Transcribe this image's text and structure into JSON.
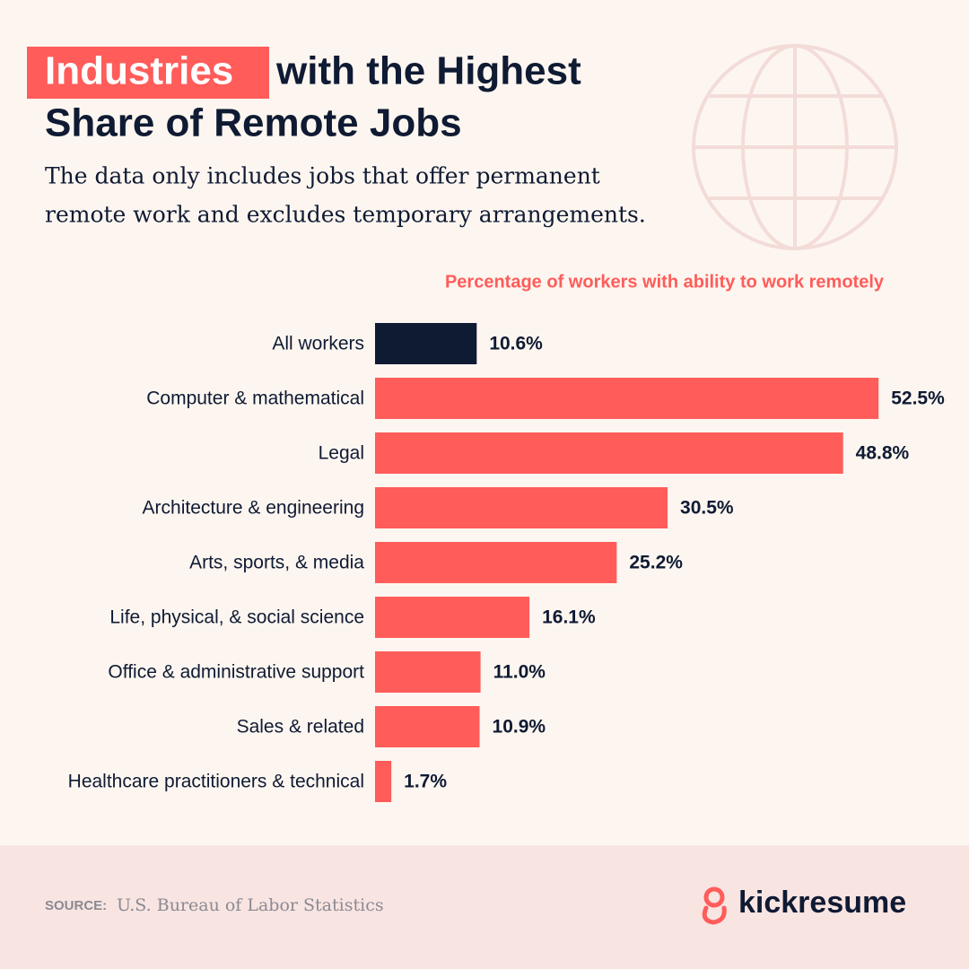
{
  "chart_data": {
    "type": "bar",
    "orientation": "horizontal",
    "title": {
      "highlight": "Industries",
      "lines": [
        "with the Highest",
        "Share of Remote Jobs"
      ]
    },
    "subtitle": [
      "The data only includes jobs that offer permanent",
      "remote work and excludes temporary arrangements."
    ],
    "axis_label": "Percentage of workers with ability to work remotely",
    "categories": [
      "All workers",
      "Computer & mathematical",
      "Legal",
      "Architecture & engineering",
      "Arts, sports, & media",
      "Life, physical, & social science",
      "Office & administrative support",
      "Sales & related",
      "Healthcare practitioners & technical"
    ],
    "values": [
      10.6,
      52.5,
      48.8,
      30.5,
      25.2,
      16.1,
      11.0,
      10.9,
      1.7
    ],
    "value_labels": [
      "10.6%",
      "52.5%",
      "48.8%",
      "30.5%",
      "25.2%",
      "16.1%",
      "11.0%",
      "10.9%",
      "1.7%"
    ],
    "colors": [
      "#0f1a33",
      "#ff5c5a",
      "#ff5c5a",
      "#ff5c5a",
      "#ff5c5a",
      "#ff5c5a",
      "#ff5c5a",
      "#ff5c5a",
      "#ff5c5a"
    ],
    "source_label": "SOURCE:",
    "source": "U.S. Bureau of Labor Statistics",
    "brand": "kickresume"
  }
}
